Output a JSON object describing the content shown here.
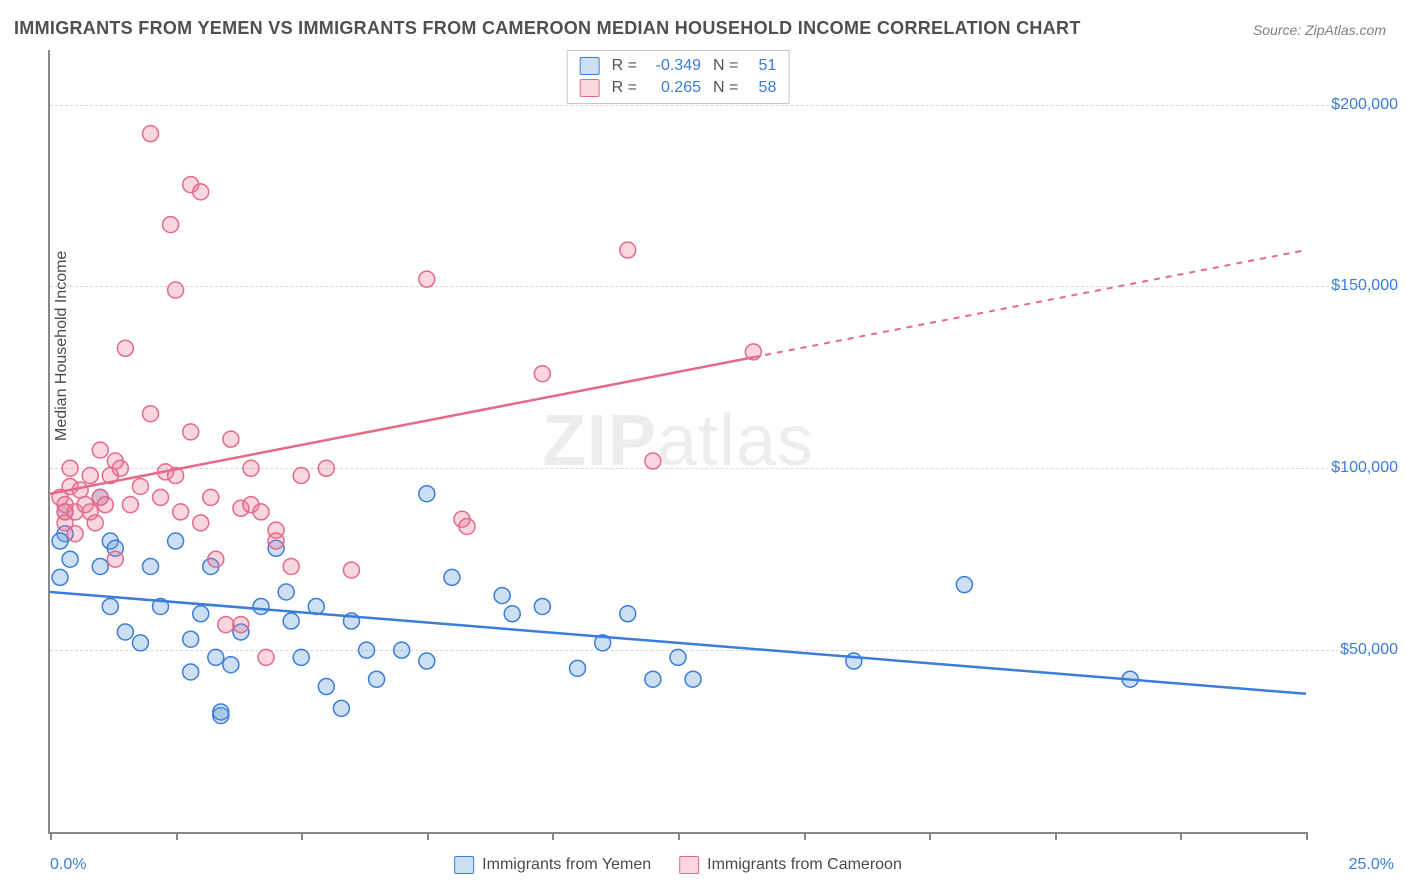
{
  "title": "IMMIGRANTS FROM YEMEN VS IMMIGRANTS FROM CAMEROON MEDIAN HOUSEHOLD INCOME CORRELATION CHART",
  "source": "Source: ZipAtlas.com",
  "watermark_bold": "ZIP",
  "watermark_rest": "atlas",
  "ylabel": "Median Household Income",
  "xaxis": {
    "min": 0.0,
    "max": 25.0,
    "start_label": "0.0%",
    "end_label": "25.0%",
    "ticks": [
      0,
      2.5,
      5,
      7.5,
      10,
      12.5,
      15,
      17.5,
      20,
      22.5,
      25
    ]
  },
  "yaxis": {
    "min": 0,
    "max": 215000,
    "grid": [
      {
        "v": 50000,
        "label": "$50,000"
      },
      {
        "v": 100000,
        "label": "$100,000"
      },
      {
        "v": 150000,
        "label": "$150,000"
      },
      {
        "v": 200000,
        "label": "$200,000"
      }
    ]
  },
  "series": [
    {
      "id": "yemen",
      "label": "Immigrants from Yemen",
      "fill": "rgba(108,162,220,0.35)",
      "stroke": "#3b7dd8",
      "marker_r": 8,
      "R": "-0.349",
      "N": "51",
      "trend": {
        "y0": 66000,
        "y1": 38000,
        "x_solid_end": 25.0,
        "dash_from": 25.0
      },
      "points": [
        [
          0.3,
          88000
        ],
        [
          0.3,
          82000
        ],
        [
          0.2,
          80000
        ],
        [
          0.4,
          75000
        ],
        [
          0.2,
          70000
        ],
        [
          1.0,
          92000
        ],
        [
          1.2,
          80000
        ],
        [
          1.3,
          78000
        ],
        [
          1.0,
          73000
        ],
        [
          1.2,
          62000
        ],
        [
          1.5,
          55000
        ],
        [
          1.8,
          52000
        ],
        [
          2.0,
          73000
        ],
        [
          2.2,
          62000
        ],
        [
          2.5,
          80000
        ],
        [
          2.8,
          53000
        ],
        [
          2.8,
          44000
        ],
        [
          3.0,
          60000
        ],
        [
          3.2,
          73000
        ],
        [
          3.3,
          48000
        ],
        [
          3.4,
          32000
        ],
        [
          3.4,
          33000
        ],
        [
          3.6,
          46000
        ],
        [
          3.8,
          55000
        ],
        [
          4.2,
          62000
        ],
        [
          4.5,
          78000
        ],
        [
          4.7,
          66000
        ],
        [
          4.8,
          58000
        ],
        [
          5.0,
          48000
        ],
        [
          5.3,
          62000
        ],
        [
          5.5,
          40000
        ],
        [
          5.8,
          34000
        ],
        [
          6.0,
          58000
        ],
        [
          6.3,
          50000
        ],
        [
          6.5,
          42000
        ],
        [
          7.0,
          50000
        ],
        [
          7.5,
          93000
        ],
        [
          7.5,
          47000
        ],
        [
          8.0,
          70000
        ],
        [
          9.0,
          65000
        ],
        [
          9.2,
          60000
        ],
        [
          9.8,
          62000
        ],
        [
          10.5,
          45000
        ],
        [
          11.0,
          52000
        ],
        [
          11.5,
          60000
        ],
        [
          12.0,
          42000
        ],
        [
          12.5,
          48000
        ],
        [
          12.8,
          42000
        ],
        [
          16.0,
          47000
        ],
        [
          18.2,
          68000
        ],
        [
          21.5,
          42000
        ]
      ]
    },
    {
      "id": "cameroon",
      "label": "Immigrants from Cameroon",
      "fill": "rgba(237,120,150,0.30)",
      "stroke": "#e46a8a",
      "marker_r": 8,
      "R": "0.265",
      "N": "58",
      "trend": {
        "y0": 93000,
        "y1": 160000,
        "x_solid_end": 14.0,
        "dash_from": 14.0
      },
      "points": [
        [
          0.2,
          92000
        ],
        [
          0.3,
          90000
        ],
        [
          0.3,
          88000
        ],
        [
          0.3,
          85000
        ],
        [
          0.4,
          100000
        ],
        [
          0.4,
          95000
        ],
        [
          0.5,
          88000
        ],
        [
          0.5,
          82000
        ],
        [
          0.6,
          94000
        ],
        [
          0.7,
          90000
        ],
        [
          0.8,
          98000
        ],
        [
          0.8,
          88000
        ],
        [
          0.9,
          85000
        ],
        [
          1.0,
          105000
        ],
        [
          1.0,
          92000
        ],
        [
          1.1,
          90000
        ],
        [
          1.2,
          98000
        ],
        [
          1.3,
          102000
        ],
        [
          1.3,
          75000
        ],
        [
          1.4,
          100000
        ],
        [
          1.5,
          133000
        ],
        [
          1.6,
          90000
        ],
        [
          1.8,
          95000
        ],
        [
          2.0,
          192000
        ],
        [
          2.0,
          115000
        ],
        [
          2.2,
          92000
        ],
        [
          2.3,
          99000
        ],
        [
          2.4,
          167000
        ],
        [
          2.5,
          149000
        ],
        [
          2.5,
          98000
        ],
        [
          2.6,
          88000
        ],
        [
          2.8,
          178000
        ],
        [
          2.8,
          110000
        ],
        [
          3.0,
          176000
        ],
        [
          3.0,
          85000
        ],
        [
          3.2,
          92000
        ],
        [
          3.3,
          75000
        ],
        [
          3.5,
          57000
        ],
        [
          3.6,
          108000
        ],
        [
          3.8,
          89000
        ],
        [
          3.8,
          57000
        ],
        [
          4.0,
          100000
        ],
        [
          4.0,
          90000
        ],
        [
          4.2,
          88000
        ],
        [
          4.3,
          48000
        ],
        [
          4.5,
          83000
        ],
        [
          4.5,
          80000
        ],
        [
          4.8,
          73000
        ],
        [
          5.0,
          98000
        ],
        [
          5.5,
          100000
        ],
        [
          6.0,
          72000
        ],
        [
          7.5,
          152000
        ],
        [
          8.2,
          86000
        ],
        [
          8.3,
          84000
        ],
        [
          9.8,
          126000
        ],
        [
          11.5,
          160000
        ],
        [
          12.0,
          102000
        ],
        [
          14.0,
          132000
        ]
      ]
    }
  ],
  "legend_stats": {
    "r_label": "R =",
    "n_label": "N ="
  }
}
